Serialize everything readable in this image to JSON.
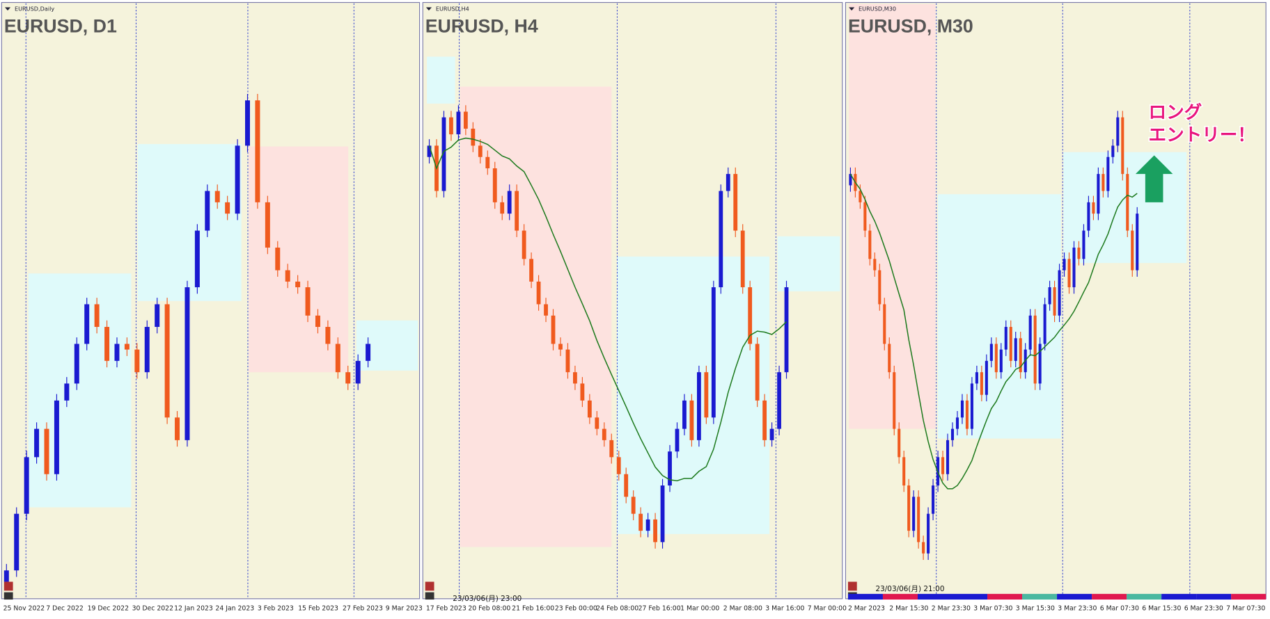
{
  "panels": [
    {
      "symbol_label": "EURUSD,Daily",
      "title": "EURUSD, D1",
      "x_labels": [
        "25 Nov 2022",
        "7 Dec 2022",
        "19 Dec 2022",
        "30 Dec 2022",
        "12 Jan 2023",
        "24 Jan 2023",
        "3 Feb 2023",
        "15 Feb 2023",
        "27 Feb 2023",
        "9 Mar 2023"
      ],
      "closes": [
        5,
        15,
        25,
        30,
        22,
        35,
        38,
        45,
        52,
        48,
        42,
        45,
        44,
        40,
        48,
        52,
        32,
        28,
        55,
        65,
        72,
        70,
        68,
        80,
        88,
        70,
        62,
        58,
        56,
        55,
        50,
        48,
        45,
        40,
        38,
        42,
        45
      ]
    },
    {
      "symbol_label": "EURUSD,H4",
      "title": "EURUSD, H4",
      "timestamp": "23/03/06(月) 23:00",
      "x_labels": [
        "17 Feb 2023",
        "20 Feb 08:00",
        "21 Feb 16:00",
        "23 Feb 00:00",
        "24 Feb 08:00",
        "27 Feb 16:00",
        "1 Mar 00:00",
        "2 Mar 08:00",
        "3 Mar 16:00",
        "7 Mar 00:00"
      ],
      "closes": [
        80,
        72,
        85,
        82,
        86,
        83,
        80,
        78,
        76,
        70,
        68,
        72,
        65,
        60,
        56,
        52,
        50,
        45,
        44,
        40,
        38,
        35,
        32,
        30,
        28,
        25,
        22,
        18,
        15,
        12,
        14,
        10,
        20,
        26,
        30,
        35,
        28,
        40,
        32,
        55,
        72,
        75,
        65,
        55,
        45,
        35,
        28,
        30,
        40,
        55
      ]
    },
    {
      "symbol_label": "EURUSD,M30",
      "title": "EURUSD, M30",
      "timestamp": "23/03/06(月) 21:00",
      "x_labels": [
        "2 Mar 2023",
        "2 Mar 15:30",
        "2 Mar 23:30",
        "3 Mar 07:30",
        "3 Mar 15:30",
        "3 Mar 23:30",
        "6 Mar 07:30",
        "6 Mar 15:30",
        "6 Mar 23:30",
        "7 Mar 07:30"
      ],
      "closes": [
        75,
        72,
        70,
        65,
        60,
        58,
        52,
        45,
        40,
        30,
        25,
        20,
        12,
        18,
        10,
        8,
        15,
        20,
        25,
        22,
        28,
        30,
        32,
        35,
        30,
        38,
        40,
        36,
        42,
        45,
        40,
        44,
        48,
        42,
        46,
        40,
        44,
        50,
        38,
        45,
        52,
        55,
        50,
        58,
        60,
        55,
        62,
        60,
        65,
        70,
        68,
        75,
        72,
        78,
        80,
        85,
        75,
        65,
        58,
        68
      ]
    }
  ],
  "annotation": [
    "ロング",
    "エントリー！"
  ]
}
